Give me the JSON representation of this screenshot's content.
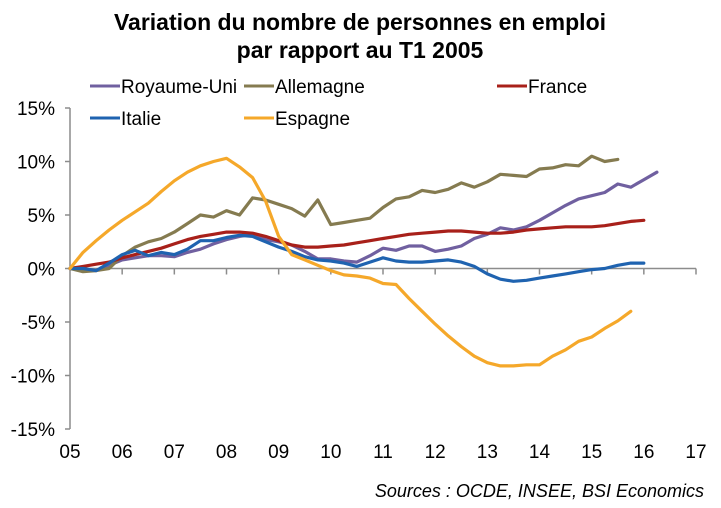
{
  "chart_data": {
    "type": "line",
    "title": "Variation du nombre de personnes en emploi",
    "subtitle": "par rapport au T1 2005",
    "xlabel": "",
    "ylabel": "",
    "source": "Sources : OCDE, INSEE, BSI Economics",
    "x_tick_labels": [
      "05",
      "06",
      "07",
      "08",
      "09",
      "10",
      "11",
      "12",
      "13",
      "14",
      "15",
      "16",
      "17"
    ],
    "xlim": [
      2005,
      2017
    ],
    "y_tick_labels": [
      "15%",
      "10%",
      "5%",
      "0%",
      "-5%",
      "-10%",
      "-15%"
    ],
    "y_ticks": [
      15,
      10,
      5,
      0,
      -5,
      -10,
      -15
    ],
    "ylim": [
      -15,
      15
    ],
    "grid": false,
    "legend_position": "top",
    "x_start": 2005.0,
    "x_step": 0.25,
    "series": [
      {
        "name": "Royaume-Uni",
        "color": "#7060A0",
        "values": [
          0.0,
          -0.1,
          -0.2,
          0.3,
          0.8,
          1.0,
          1.2,
          1.2,
          1.1,
          1.5,
          1.8,
          2.3,
          2.7,
          3.0,
          3.2,
          2.7,
          2.5,
          2.2,
          1.6,
          0.9,
          0.9,
          0.7,
          0.6,
          1.2,
          1.9,
          1.7,
          2.1,
          2.1,
          1.6,
          1.8,
          2.1,
          2.8,
          3.2,
          3.8,
          3.6,
          3.9,
          4.5,
          5.2,
          5.9,
          6.5,
          6.8,
          7.1,
          7.9,
          7.6,
          8.3,
          9.0
        ]
      },
      {
        "name": "Allemagne",
        "color": "#857B50",
        "values": [
          0.0,
          -0.3,
          -0.2,
          0.0,
          1.2,
          2.0,
          2.5,
          2.8,
          3.4,
          4.2,
          5.0,
          4.8,
          5.4,
          5.0,
          6.6,
          6.4,
          6.0,
          5.6,
          4.9,
          6.4,
          4.1,
          4.3,
          4.5,
          4.7,
          5.7,
          6.5,
          6.7,
          7.3,
          7.1,
          7.4,
          8.0,
          7.6,
          8.1,
          8.8,
          8.7,
          8.6,
          9.3,
          9.4,
          9.7,
          9.6,
          10.5,
          10.0,
          10.2
        ]
      },
      {
        "name": "France",
        "color": "#A8201A",
        "values": [
          0.0,
          0.2,
          0.4,
          0.6,
          1.0,
          1.3,
          1.6,
          1.9,
          2.3,
          2.7,
          3.0,
          3.2,
          3.4,
          3.4,
          3.3,
          3.0,
          2.6,
          2.2,
          2.0,
          2.0,
          2.1,
          2.2,
          2.4,
          2.6,
          2.8,
          3.0,
          3.2,
          3.3,
          3.4,
          3.5,
          3.5,
          3.4,
          3.3,
          3.3,
          3.4,
          3.6,
          3.7,
          3.8,
          3.9,
          3.9,
          3.9,
          4.0,
          4.2,
          4.4,
          4.5
        ]
      },
      {
        "name": "Italie",
        "color": "#1F63B0",
        "values": [
          0.0,
          0.0,
          -0.2,
          0.5,
          1.3,
          1.7,
          1.2,
          1.5,
          1.3,
          1.8,
          2.6,
          2.6,
          2.9,
          3.1,
          3.0,
          2.5,
          2.0,
          1.6,
          1.1,
          0.8,
          0.7,
          0.5,
          0.2,
          0.6,
          1.0,
          0.7,
          0.6,
          0.6,
          0.7,
          0.8,
          0.6,
          0.2,
          -0.5,
          -1.0,
          -1.2,
          -1.1,
          -0.9,
          -0.7,
          -0.5,
          -0.3,
          -0.1,
          0.0,
          0.3,
          0.5,
          0.5
        ]
      },
      {
        "name": "Espagne",
        "color": "#F5A82A",
        "values": [
          0.0,
          1.5,
          2.6,
          3.6,
          4.5,
          5.3,
          6.1,
          7.2,
          8.2,
          9.0,
          9.6,
          10.0,
          10.3,
          9.5,
          8.5,
          6.3,
          3.0,
          1.3,
          0.8,
          0.3,
          -0.2,
          -0.6,
          -0.7,
          -0.9,
          -1.4,
          -1.5,
          -2.8,
          -4.0,
          -5.2,
          -6.3,
          -7.3,
          -8.2,
          -8.8,
          -9.1,
          -9.1,
          -9.0,
          -9.0,
          -8.2,
          -7.6,
          -6.8,
          -6.4,
          -5.6,
          -4.9,
          -4.0
        ]
      }
    ]
  }
}
